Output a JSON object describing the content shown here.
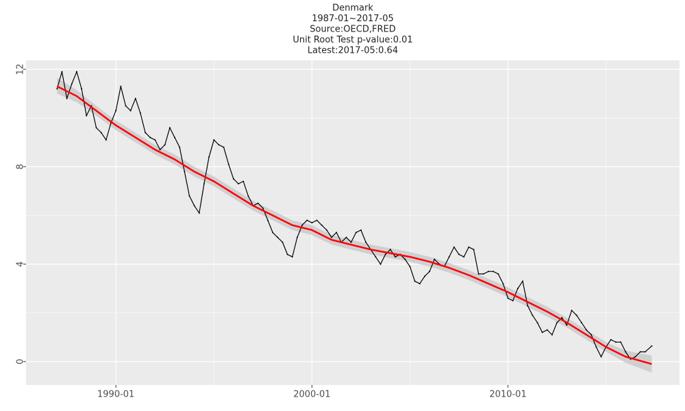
{
  "chart_data": {
    "type": "line",
    "title": [
      "Denmark",
      "1987-01~2017-05",
      "Source:OECD,FRED",
      "Unit Root Test p-value:0.01",
      "Latest:2017-05:0.64"
    ],
    "x": [
      "1987-01",
      "1987-04",
      "1987-07",
      "1987-10",
      "1988-01",
      "1988-04",
      "1988-07",
      "1988-10",
      "1989-01",
      "1989-04",
      "1989-07",
      "1989-10",
      "1990-01",
      "1990-04",
      "1990-07",
      "1990-10",
      "1991-01",
      "1991-04",
      "1991-07",
      "1991-10",
      "1992-01",
      "1992-04",
      "1992-07",
      "1992-10",
      "1993-01",
      "1993-04",
      "1993-07",
      "1993-10",
      "1994-01",
      "1994-04",
      "1994-07",
      "1994-10",
      "1995-01",
      "1995-04",
      "1995-07",
      "1995-10",
      "1996-01",
      "1996-04",
      "1996-07",
      "1996-10",
      "1997-01",
      "1997-04",
      "1997-07",
      "1997-10",
      "1998-01",
      "1998-04",
      "1998-07",
      "1998-10",
      "1999-01",
      "1999-04",
      "1999-07",
      "1999-10",
      "2000-01",
      "2000-04",
      "2000-07",
      "2000-10",
      "2001-01",
      "2001-04",
      "2001-07",
      "2001-10",
      "2002-01",
      "2002-04",
      "2002-07",
      "2002-10",
      "2003-01",
      "2003-04",
      "2003-07",
      "2003-10",
      "2004-01",
      "2004-04",
      "2004-07",
      "2004-10",
      "2005-01",
      "2005-04",
      "2005-07",
      "2005-10",
      "2006-01",
      "2006-04",
      "2006-07",
      "2006-10",
      "2007-01",
      "2007-04",
      "2007-07",
      "2007-10",
      "2008-01",
      "2008-04",
      "2008-07",
      "2008-10",
      "2009-01",
      "2009-04",
      "2009-07",
      "2009-10",
      "2010-01",
      "2010-04",
      "2010-07",
      "2010-10",
      "2011-01",
      "2011-04",
      "2011-07",
      "2011-10",
      "2012-01",
      "2012-04",
      "2012-07",
      "2012-10",
      "2013-01",
      "2013-04",
      "2013-07",
      "2013-10",
      "2014-01",
      "2014-04",
      "2014-07",
      "2014-10",
      "2015-01",
      "2015-04",
      "2015-07",
      "2015-10",
      "2016-01",
      "2016-04",
      "2016-07",
      "2016-10",
      "2017-01",
      "2017-05"
    ],
    "values": [
      11.2,
      11.9,
      10.8,
      11.4,
      11.9,
      11.2,
      10.1,
      10.5,
      9.6,
      9.4,
      9.1,
      9.8,
      10.3,
      11.3,
      10.5,
      10.3,
      10.8,
      10.2,
      9.4,
      9.2,
      9.1,
      8.7,
      8.9,
      9.6,
      9.2,
      8.8,
      7.8,
      6.8,
      6.4,
      6.1,
      7.3,
      8.4,
      9.1,
      8.9,
      8.8,
      8.1,
      7.5,
      7.3,
      7.4,
      6.8,
      6.4,
      6.5,
      6.3,
      5.8,
      5.3,
      5.1,
      4.9,
      4.4,
      4.3,
      5.1,
      5.6,
      5.8,
      5.7,
      5.8,
      5.6,
      5.4,
      5.1,
      5.3,
      4.9,
      5.1,
      4.9,
      5.3,
      5.4,
      4.9,
      4.6,
      4.3,
      4.0,
      4.4,
      4.6,
      4.3,
      4.4,
      4.2,
      3.9,
      3.3,
      3.2,
      3.5,
      3.7,
      4.2,
      4.0,
      3.9,
      4.3,
      4.7,
      4.4,
      4.3,
      4.7,
      4.6,
      3.6,
      3.6,
      3.7,
      3.7,
      3.6,
      3.2,
      2.6,
      2.5,
      3.0,
      3.3,
      2.3,
      1.9,
      1.6,
      1.2,
      1.3,
      1.1,
      1.6,
      1.8,
      1.5,
      2.1,
      1.9,
      1.6,
      1.3,
      1.1,
      0.6,
      0.2,
      0.6,
      0.9,
      0.8,
      0.8,
      0.4,
      0.1,
      0.2,
      0.4,
      0.4,
      0.64
    ],
    "color": "#000000",
    "smooth": {
      "x": [
        "1987-01",
        "1988-01",
        "1989-01",
        "1990-01",
        "1991-01",
        "1992-01",
        "1993-01",
        "1994-01",
        "1995-01",
        "1996-01",
        "1997-01",
        "1998-01",
        "1999-01",
        "2000-01",
        "2001-01",
        "2002-01",
        "2003-01",
        "2004-01",
        "2005-01",
        "2006-01",
        "2007-01",
        "2008-01",
        "2009-01",
        "2010-01",
        "2011-01",
        "2012-01",
        "2013-01",
        "2014-01",
        "2015-01",
        "2016-01",
        "2017-05"
      ],
      "values": [
        11.3,
        10.9,
        10.3,
        9.7,
        9.2,
        8.7,
        8.3,
        7.8,
        7.4,
        6.9,
        6.4,
        6.0,
        5.6,
        5.4,
        5.0,
        4.8,
        4.6,
        4.45,
        4.3,
        4.1,
        3.85,
        3.55,
        3.2,
        2.85,
        2.45,
        2.05,
        1.6,
        1.1,
        0.6,
        0.2,
        -0.1
      ],
      "lower": [
        11.0,
        10.65,
        10.1,
        9.5,
        9.0,
        8.5,
        8.1,
        7.6,
        7.2,
        6.7,
        6.2,
        5.8,
        5.4,
        5.2,
        4.8,
        4.6,
        4.4,
        4.25,
        4.1,
        3.9,
        3.65,
        3.35,
        3.0,
        2.65,
        2.25,
        1.85,
        1.4,
        0.9,
        0.4,
        -0.05,
        -0.45
      ],
      "upper": [
        11.65,
        11.15,
        10.5,
        9.9,
        9.4,
        8.9,
        8.5,
        8.0,
        7.6,
        7.1,
        6.6,
        6.2,
        5.8,
        5.6,
        5.2,
        5.0,
        4.8,
        4.65,
        4.5,
        4.3,
        4.05,
        3.75,
        3.4,
        3.05,
        2.65,
        2.25,
        1.8,
        1.3,
        0.8,
        0.45,
        0.25
      ],
      "color": "#ff0000",
      "band_color": "#c8c8cc"
    },
    "xlim": [
      "1985-06",
      "2018-10"
    ],
    "xticks": [
      "1990-01",
      "2000-01",
      "2010-01"
    ],
    "ylim": [
      -0.96,
      12.37
    ],
    "yticks": [
      0,
      4,
      8,
      12
    ],
    "grid": true
  }
}
